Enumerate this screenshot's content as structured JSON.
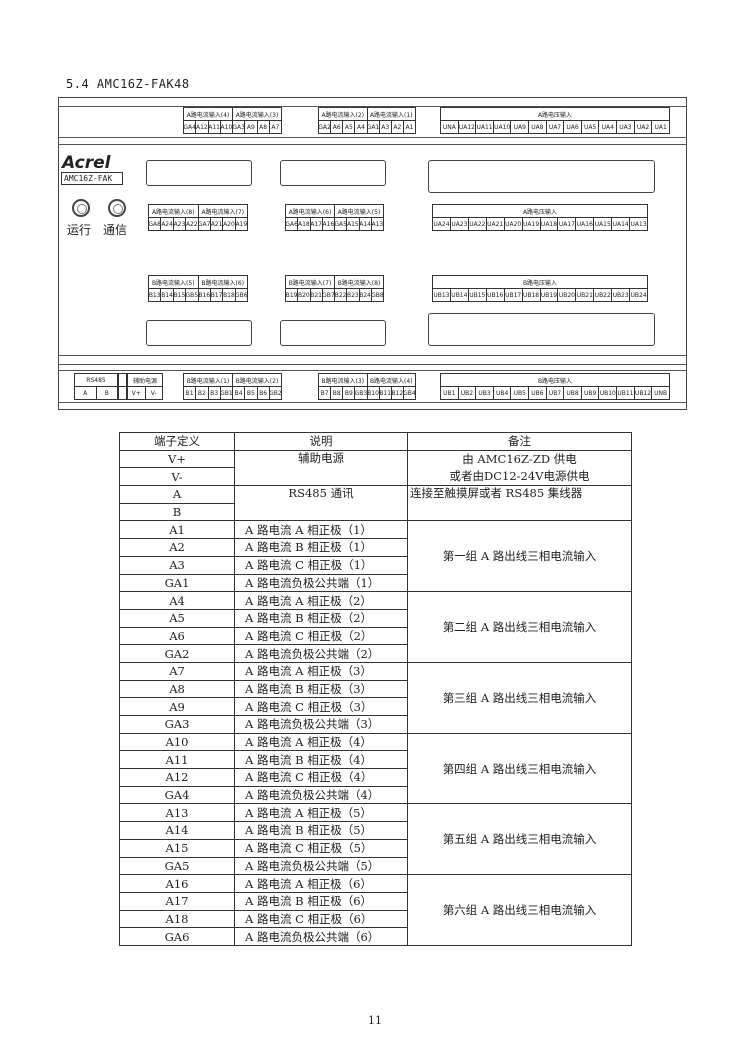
{
  "section_title": "5.4 AMC16Z-FAK48",
  "device": {
    "brand": "Acrel",
    "model": "AMC16Z-FAK",
    "led_run": "运行",
    "led_comm": "通信",
    "blocks": [
      {
        "titles": [
          "A路电流输入(4)",
          "A路电流输入(3)"
        ],
        "cells": [
          "GA4",
          "A12",
          "A11",
          "A10",
          "GA3",
          "A9",
          "A8",
          "A7"
        ]
      },
      {
        "titles": [
          "A路电流输入(2)",
          "A路电流输入(1)"
        ],
        "cells": [
          "GA2",
          "A6",
          "A5",
          "A4",
          "GA1",
          "A3",
          "A2",
          "A1"
        ]
      },
      {
        "titles": [
          "A路电压输入"
        ],
        "cells": [
          "UNA",
          "UA12",
          "UA11",
          "UA10",
          "UA9",
          "UA8",
          "UA7",
          "UA6",
          "UA5",
          "UA4",
          "UA3",
          "UA2",
          "UA1"
        ]
      },
      {
        "titles": [
          "A路电流输入(8)",
          "A路电流输入(7)"
        ],
        "cells": [
          "GA8",
          "A24",
          "A23",
          "A22",
          "GA7",
          "A21",
          "A20",
          "A19"
        ]
      },
      {
        "titles": [
          "A路电流输入(6)",
          "A路电流输入(5)"
        ],
        "cells": [
          "GA6",
          "A18",
          "A17",
          "A16",
          "GA5",
          "A15",
          "A14",
          "A13"
        ]
      },
      {
        "titles": [
          "A路电压输入"
        ],
        "cells": [
          "UA24",
          "UA23",
          "UA22",
          "UA21",
          "UA20",
          "UA19",
          "UA18",
          "UA17",
          "UA16",
          "UA15",
          "UA14",
          "UA13"
        ]
      },
      {
        "titles": [
          "B路电流输入(5)",
          "B路电流输入(6)"
        ],
        "cells": [
          "B13",
          "B14",
          "B15",
          "GB5",
          "B16",
          "B17",
          "B18",
          "GB6"
        ]
      },
      {
        "titles": [
          "B路电流输入(7)",
          "B路电流输入(8)"
        ],
        "cells": [
          "B19",
          "B20",
          "B21",
          "GB7",
          "B22",
          "B23",
          "B24",
          "GB8"
        ]
      },
      {
        "titles": [
          "B路电压输入"
        ],
        "cells": [
          "UB13",
          "UB14",
          "UB15",
          "UB16",
          "UB17",
          "UB18",
          "UB19",
          "UB20",
          "UB21",
          "UB22",
          "UB23",
          "UB24"
        ]
      },
      {
        "titles": [
          "RS485"
        ],
        "cells": [
          "A",
          "B"
        ]
      },
      {
        "titles": [
          ""
        ],
        "cells": [
          ""
        ]
      },
      {
        "titles": [
          "辅助电源"
        ],
        "cells": [
          "V+",
          "V-"
        ]
      },
      {
        "titles": [
          "B路电流输入(1)",
          "B路电流输入(2)"
        ],
        "cells": [
          "B1",
          "B2",
          "B3",
          "GB1",
          "B4",
          "B5",
          "B6",
          "GB2"
        ]
      },
      {
        "titles": [
          "B路电流输入(3)",
          "B路电流输入(4)"
        ],
        "cells": [
          "B7",
          "B8",
          "B9",
          "GB3",
          "B10",
          "B11",
          "B12",
          "GB4"
        ]
      },
      {
        "titles": [
          "B路电压输入"
        ],
        "cells": [
          "UB1",
          "UB2",
          "UB3",
          "UB4",
          "UB5",
          "UB6",
          "UB7",
          "UB8",
          "UB9",
          "UB10",
          "UB11",
          "UB12",
          "UNB"
        ]
      }
    ]
  },
  "table": {
    "headers": [
      "端子定义",
      "说明",
      "备注"
    ],
    "power": {
      "terms": [
        "V+",
        "V-"
      ],
      "desc": "辅助电源",
      "note1": "由 AMC16Z-ZD 供电",
      "note2": "或者由DC12-24V电源供电"
    },
    "rs485": {
      "terms": [
        "A",
        "B"
      ],
      "desc": "RS485 通讯",
      "note": "连接至触摸屏或者 RS485 集线器"
    },
    "groups": [
      {
        "note": "第一组 A 路出线三相电流输入",
        "rows": [
          [
            "A1",
            "A 路电流 A 相正极（1）"
          ],
          [
            "A2",
            "A 路电流 B 相正极（1）"
          ],
          [
            "A3",
            "A 路电流 C 相正极（1）"
          ],
          [
            "GA1",
            "A 路电流负极公共端（1）"
          ]
        ]
      },
      {
        "note": "第二组 A 路出线三相电流输入",
        "rows": [
          [
            "A4",
            "A 路电流 A 相正极（2）"
          ],
          [
            "A5",
            "A 路电流 B 相正极（2）"
          ],
          [
            "A6",
            "A 路电流 C 相正极（2）"
          ],
          [
            "GA2",
            "A 路电流负极公共端（2）"
          ]
        ]
      },
      {
        "note": "第三组 A 路出线三相电流输入",
        "rows": [
          [
            "A7",
            "A 路电流 A 相正极（3）"
          ],
          [
            "A8",
            "A 路电流 B 相正极（3）"
          ],
          [
            "A9",
            "A 路电流 C 相正极（3）"
          ],
          [
            "GA3",
            "A 路电流负极公共端（3）"
          ]
        ]
      },
      {
        "note": "第四组 A 路出线三相电流输入",
        "rows": [
          [
            "A10",
            "A 路电流 A 相正极（4）"
          ],
          [
            "A11",
            "A 路电流 B 相正极（4）"
          ],
          [
            "A12",
            "A 路电流 C 相正极（4）"
          ],
          [
            "GA4",
            "A 路电流负极公共端（4）"
          ]
        ]
      },
      {
        "note": "第五组 A 路出线三相电流输入",
        "rows": [
          [
            "A13",
            "A 路电流 A 相正极（5）"
          ],
          [
            "A14",
            "A 路电流 B 相正极（5）"
          ],
          [
            "A15",
            "A 路电流 C 相正极（5）"
          ],
          [
            "GA5",
            "A 路电流负极公共端（5）"
          ]
        ]
      },
      {
        "note": "第六组 A 路出线三相电流输入",
        "rows": [
          [
            "A16",
            "A 路电流 A 相正极（6）"
          ],
          [
            "A17",
            "A 路电流 B 相正极（6）"
          ],
          [
            "A18",
            "A 路电流 C 相正极（6）"
          ],
          [
            "GA6",
            "A 路电流负极公共端（6）"
          ]
        ]
      }
    ]
  },
  "page_number": "11"
}
